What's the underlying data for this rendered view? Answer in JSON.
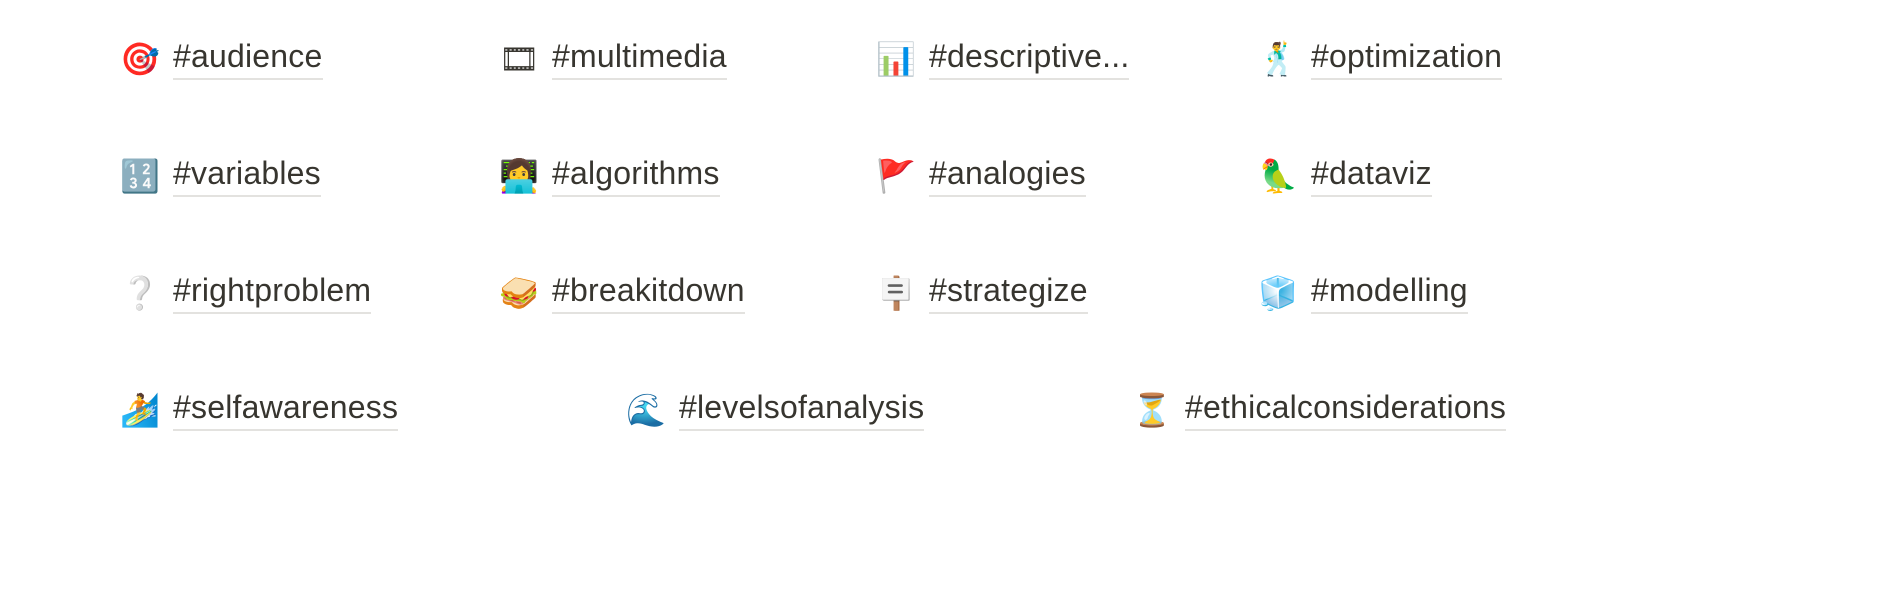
{
  "tags": [
    {
      "label": "#audience",
      "icon": "🎯",
      "icon_name": "target-icon"
    },
    {
      "label": "#multimedia",
      "icon": "🎞",
      "icon_name": "film-frames-icon"
    },
    {
      "label": "#descriptive...",
      "icon": "📊",
      "icon_name": "bar-chart-icon"
    },
    {
      "label": "#optimization",
      "icon": "🕺",
      "icon_name": "dancer-icon"
    },
    {
      "label": "#variables",
      "icon": "🔢",
      "icon_name": "numbers-icon"
    },
    {
      "label": "#algorithms",
      "icon": "👩‍💻",
      "icon_name": "technologist-icon"
    },
    {
      "label": "#analogies",
      "icon": "🚩",
      "icon_name": "red-flag-icon"
    },
    {
      "label": "#dataviz",
      "icon": "🦜",
      "icon_name": "parrot-icon"
    },
    {
      "label": "#rightproblem",
      "icon": "❔",
      "icon_name": "question-mark-icon"
    },
    {
      "label": "#breakitdown",
      "icon": "🥪",
      "icon_name": "sandwich-icon"
    },
    {
      "label": "#strategize",
      "icon": "🪧",
      "icon_name": "placard-icon"
    },
    {
      "label": "#modelling",
      "icon": "🧊",
      "icon_name": "ice-cube-icon"
    },
    {
      "label": "#selfawareness",
      "icon": "🏄",
      "icon_name": "surfer-icon"
    },
    {
      "label": "#levelsofanalysis",
      "icon": "🌊",
      "icon_name": "wave-icon"
    },
    {
      "label": "#ethicalconsiderations",
      "icon": "⏳",
      "icon_name": "hourglass-icon"
    }
  ]
}
